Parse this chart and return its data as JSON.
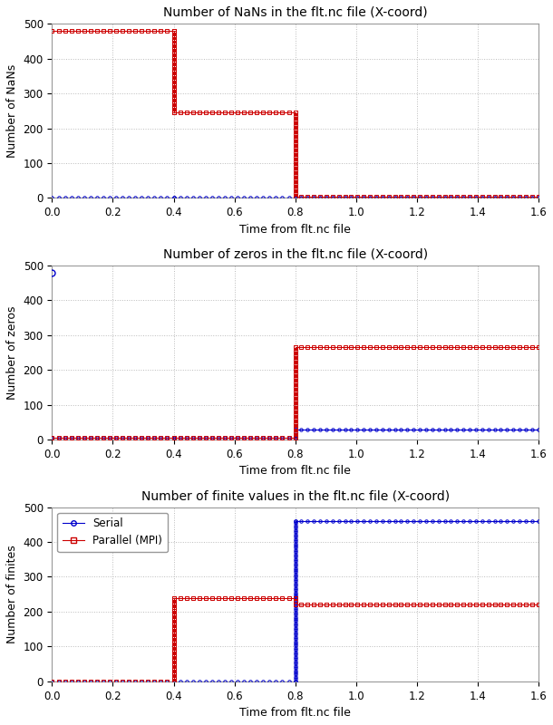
{
  "title1": "Number of NaNs in the flt.nc file (X-coord)",
  "title2": "Number of zeros in the flt.nc file (X-coord)",
  "title3": "Number of finite values in the flt.nc file (X-coord)",
  "xlabel": "Time from flt.nc file",
  "ylabel1": "Number of NaNs",
  "ylabel2": "Number of zeros",
  "ylabel3": "Number of finites",
  "xlim": [
    0,
    1.6
  ],
  "ylim": [
    0,
    500
  ],
  "xticks": [
    0,
    0.2,
    0.4,
    0.6,
    0.8,
    1.0,
    1.2,
    1.4,
    1.6
  ],
  "yticks": [
    0,
    100,
    200,
    300,
    400,
    500
  ],
  "nan_serial_x": [
    0,
    0.4,
    0.4,
    0.8,
    0.8,
    1.6
  ],
  "nan_serial_y": [
    0,
    0,
    0,
    0,
    0,
    0
  ],
  "nan_parallel_x": [
    0,
    0.4,
    0.4,
    0.8,
    0.8,
    1.6
  ],
  "nan_parallel_y": [
    480,
    480,
    245,
    245,
    5,
    5
  ],
  "zero_serial_x": [
    0,
    0.4,
    0.4,
    0.8,
    0.8,
    1.6
  ],
  "zero_serial_y": [
    5,
    5,
    5,
    5,
    30,
    30
  ],
  "zero_serial_marker_x": [
    0
  ],
  "zero_serial_marker_y": [
    480
  ],
  "zero_parallel_x": [
    0,
    0.4,
    0.4,
    0.8,
    0.8,
    1.6
  ],
  "zero_parallel_y": [
    5,
    5,
    5,
    5,
    265,
    265
  ],
  "finite_serial_x": [
    0,
    0.4,
    0.4,
    0.8,
    0.8,
    1.6
  ],
  "finite_serial_y": [
    0,
    0,
    0,
    0,
    460,
    460
  ],
  "finite_parallel_x": [
    0,
    0.4,
    0.4,
    0.8,
    0.8,
    1.6
  ],
  "finite_parallel_y": [
    0,
    0,
    240,
    240,
    220,
    220
  ],
  "color_serial": "#0000cc",
  "color_parallel": "#cc0000",
  "legend_serial": "Serial",
  "legend_parallel": "Parallel (MPI)",
  "bg_color": "#FFFFFF",
  "grid_color": "#bbbbbb",
  "title_fontsize": 10,
  "label_fontsize": 9,
  "tick_fontsize": 8.5,
  "legend_fontsize": 8.5,
  "n_markers": 80
}
